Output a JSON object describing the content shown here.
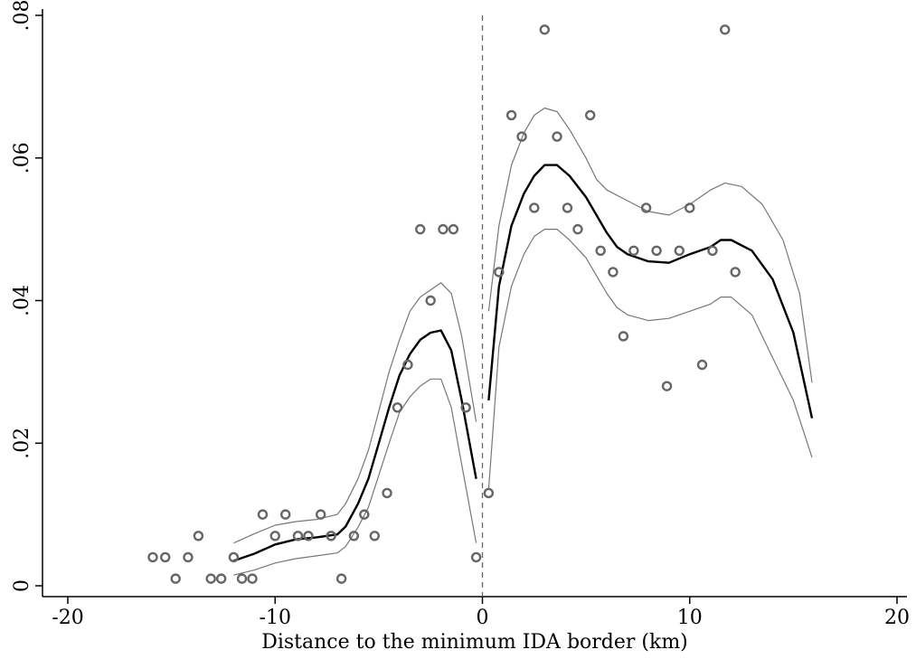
{
  "chart_data": {
    "type": "scatter",
    "title": "",
    "xlabel": "Distance to the minimum IDA border (km)",
    "ylabel": "",
    "xlim": [
      -20,
      20
    ],
    "ylim": [
      0,
      0.08
    ],
    "xticks": [
      -20,
      -10,
      0,
      10,
      20
    ],
    "xtick_labels": [
      "-20",
      "-10",
      "0",
      "10",
      "20"
    ],
    "yticks": [
      0,
      0.02,
      0.04,
      0.06,
      0.08
    ],
    "ytick_labels": [
      "0",
      ".02",
      ".04",
      ".06",
      ".08"
    ],
    "cutoff_x": 0,
    "grid": false,
    "colors": {
      "points": "#666666",
      "fit": "#000000",
      "ci": "#777777",
      "cutoff": "#666666"
    },
    "series": [
      {
        "kind": "scatter",
        "points": [
          [
            -15.9,
            0.004
          ],
          [
            -15.3,
            0.004
          ],
          [
            -14.8,
            0.001
          ],
          [
            -14.2,
            0.004
          ],
          [
            -13.7,
            0.007
          ],
          [
            -13.1,
            0.001
          ],
          [
            -12.6,
            0.001
          ],
          [
            -12.0,
            0.004
          ],
          [
            -11.6,
            0.001
          ],
          [
            -11.1,
            0.001
          ],
          [
            -10.6,
            0.01
          ],
          [
            -10.0,
            0.007
          ],
          [
            -9.5,
            0.01
          ],
          [
            -8.9,
            0.007
          ],
          [
            -8.4,
            0.007
          ],
          [
            -7.8,
            0.01
          ],
          [
            -7.3,
            0.007
          ],
          [
            -6.8,
            0.001
          ],
          [
            -6.2,
            0.007
          ],
          [
            -5.7,
            0.01
          ],
          [
            -5.2,
            0.007
          ],
          [
            -4.6,
            0.013
          ],
          [
            -4.1,
            0.025
          ],
          [
            -3.6,
            0.031
          ],
          [
            -3.0,
            0.05
          ],
          [
            -2.5,
            0.04
          ],
          [
            -1.9,
            0.05
          ],
          [
            -1.4,
            0.05
          ],
          [
            -0.8,
            0.025
          ],
          [
            -0.3,
            0.004
          ],
          [
            0.3,
            0.013
          ],
          [
            0.8,
            0.044
          ],
          [
            1.4,
            0.066
          ],
          [
            1.9,
            0.063
          ],
          [
            2.5,
            0.053
          ],
          [
            3.0,
            0.078
          ],
          [
            3.6,
            0.063
          ],
          [
            4.1,
            0.053
          ],
          [
            4.6,
            0.05
          ],
          [
            5.2,
            0.066
          ],
          [
            5.7,
            0.047
          ],
          [
            6.3,
            0.044
          ],
          [
            6.8,
            0.035
          ],
          [
            7.3,
            0.047
          ],
          [
            7.9,
            0.053
          ],
          [
            8.4,
            0.047
          ],
          [
            8.9,
            0.028
          ],
          [
            9.5,
            0.047
          ],
          [
            10.0,
            0.053
          ],
          [
            10.6,
            0.031
          ],
          [
            11.1,
            0.047
          ],
          [
            11.7,
            0.078
          ],
          [
            12.2,
            0.044
          ]
        ]
      },
      {
        "kind": "fit-left",
        "points": [
          [
            -12.0,
            0.0035
          ],
          [
            -11.0,
            0.0045
          ],
          [
            -10.0,
            0.0058
          ],
          [
            -9.0,
            0.0065
          ],
          [
            -8.0,
            0.0068
          ],
          [
            -7.0,
            0.0072
          ],
          [
            -6.6,
            0.0083
          ],
          [
            -6.0,
            0.0115
          ],
          [
            -5.5,
            0.015
          ],
          [
            -5.0,
            0.02
          ],
          [
            -4.5,
            0.025
          ],
          [
            -4.0,
            0.0295
          ],
          [
            -3.5,
            0.0325
          ],
          [
            -3.0,
            0.0345
          ],
          [
            -2.5,
            0.0355
          ],
          [
            -2.0,
            0.0358
          ],
          [
            -1.5,
            0.033
          ],
          [
            -1.0,
            0.026
          ],
          [
            -0.3,
            0.015
          ]
        ]
      },
      {
        "kind": "ci-left-upper",
        "points": [
          [
            -12.0,
            0.006
          ],
          [
            -11.0,
            0.0073
          ],
          [
            -10.0,
            0.0085
          ],
          [
            -9.0,
            0.009
          ],
          [
            -8.0,
            0.0093
          ],
          [
            -7.0,
            0.01
          ],
          [
            -6.6,
            0.0115
          ],
          [
            -6.0,
            0.015
          ],
          [
            -5.5,
            0.019
          ],
          [
            -5.0,
            0.0245
          ],
          [
            -4.5,
            0.03
          ],
          [
            -4.0,
            0.0345
          ],
          [
            -3.5,
            0.0385
          ],
          [
            -3.0,
            0.0405
          ],
          [
            -2.5,
            0.0415
          ],
          [
            -2.0,
            0.0425
          ],
          [
            -1.5,
            0.041
          ],
          [
            -1.0,
            0.035
          ],
          [
            -0.3,
            0.023
          ]
        ]
      },
      {
        "kind": "ci-left-lower",
        "points": [
          [
            -12.0,
            0.0015
          ],
          [
            -11.0,
            0.0022
          ],
          [
            -10.0,
            0.0032
          ],
          [
            -9.0,
            0.0038
          ],
          [
            -8.0,
            0.0042
          ],
          [
            -7.0,
            0.0046
          ],
          [
            -6.6,
            0.0055
          ],
          [
            -6.0,
            0.0082
          ],
          [
            -5.5,
            0.011
          ],
          [
            -5.0,
            0.0155
          ],
          [
            -4.5,
            0.02
          ],
          [
            -4.0,
            0.0243
          ],
          [
            -3.5,
            0.0265
          ],
          [
            -3.0,
            0.028
          ],
          [
            -2.5,
            0.029
          ],
          [
            -2.0,
            0.029
          ],
          [
            -1.5,
            0.025
          ],
          [
            -1.0,
            0.017
          ],
          [
            -0.3,
            0.006
          ]
        ]
      },
      {
        "kind": "fit-right",
        "points": [
          [
            0.3,
            0.026
          ],
          [
            0.8,
            0.042
          ],
          [
            1.4,
            0.0505
          ],
          [
            2.0,
            0.055
          ],
          [
            2.5,
            0.0575
          ],
          [
            3.0,
            0.059
          ],
          [
            3.6,
            0.059
          ],
          [
            4.2,
            0.0575
          ],
          [
            5.0,
            0.0545
          ],
          [
            5.5,
            0.052
          ],
          [
            6.0,
            0.0495
          ],
          [
            6.5,
            0.0475
          ],
          [
            7.0,
            0.0465
          ],
          [
            8.0,
            0.0455
          ],
          [
            9.0,
            0.0453
          ],
          [
            10.0,
            0.0465
          ],
          [
            11.0,
            0.0475
          ],
          [
            11.5,
            0.0485
          ],
          [
            12.0,
            0.0485
          ],
          [
            13.0,
            0.047
          ],
          [
            14.0,
            0.043
          ],
          [
            15.0,
            0.0355
          ],
          [
            15.9,
            0.0235
          ]
        ]
      },
      {
        "kind": "ci-right-upper",
        "points": [
          [
            0.3,
            0.0385
          ],
          [
            0.8,
            0.0505
          ],
          [
            1.4,
            0.059
          ],
          [
            2.0,
            0.0635
          ],
          [
            2.5,
            0.066
          ],
          [
            3.0,
            0.067
          ],
          [
            3.6,
            0.0665
          ],
          [
            4.2,
            0.064
          ],
          [
            5.0,
            0.06
          ],
          [
            5.5,
            0.057
          ],
          [
            6.0,
            0.0555
          ],
          [
            7.0,
            0.054
          ],
          [
            8.0,
            0.0525
          ],
          [
            9.0,
            0.052
          ],
          [
            10.0,
            0.0535
          ],
          [
            11.0,
            0.0555
          ],
          [
            11.7,
            0.0565
          ],
          [
            12.5,
            0.056
          ],
          [
            13.5,
            0.0535
          ],
          [
            14.5,
            0.0485
          ],
          [
            15.3,
            0.041
          ],
          [
            15.9,
            0.0285
          ]
        ]
      },
      {
        "kind": "ci-right-lower",
        "points": [
          [
            0.3,
            0.0135
          ],
          [
            0.8,
            0.0335
          ],
          [
            1.4,
            0.042
          ],
          [
            2.0,
            0.0465
          ],
          [
            2.5,
            0.049
          ],
          [
            3.0,
            0.05
          ],
          [
            3.6,
            0.05
          ],
          [
            4.2,
            0.0485
          ],
          [
            5.0,
            0.046
          ],
          [
            5.5,
            0.0435
          ],
          [
            6.0,
            0.041
          ],
          [
            6.5,
            0.039
          ],
          [
            7.0,
            0.038
          ],
          [
            8.0,
            0.0372
          ],
          [
            9.0,
            0.0375
          ],
          [
            10.0,
            0.0385
          ],
          [
            11.0,
            0.0395
          ],
          [
            11.5,
            0.0405
          ],
          [
            12.0,
            0.0405
          ],
          [
            13.0,
            0.038
          ],
          [
            14.0,
            0.032
          ],
          [
            15.0,
            0.026
          ],
          [
            15.9,
            0.018
          ]
        ]
      }
    ]
  }
}
